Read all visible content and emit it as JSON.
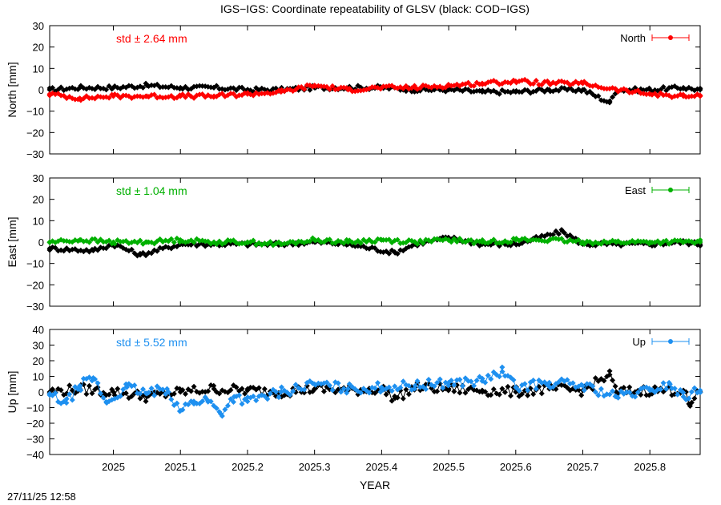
{
  "title": "IGS−IGS: Coordinate repeatability of GLSV (black: COD−IGS)",
  "xlabel": "YEAR",
  "timestamp": "27/11/25 12:58",
  "colors": {
    "reference": "#000000",
    "North": "#ff0000",
    "East": "#00b000",
    "Up": "#1e90f0"
  },
  "chart_data": [
    {
      "type": "line",
      "panel": "North",
      "ylabel": "North [mm]",
      "legend": "North",
      "legend_position": "top-right",
      "std_text": "std ± 2.64 mm",
      "xlim": [
        2024.905,
        2025.875
      ],
      "ylim": [
        -30,
        30
      ],
      "yticks": [
        -30,
        -20,
        -10,
        0,
        10,
        20,
        30
      ],
      "grid": false,
      "series": [
        {
          "name": "North",
          "color": "#ff0000",
          "x": [
            2024.905,
            2024.95,
            2025.0,
            2025.05,
            2025.1,
            2025.15,
            2025.2,
            2025.25,
            2025.3,
            2025.35,
            2025.4,
            2025.45,
            2025.5,
            2025.55,
            2025.6,
            2025.65,
            2025.7,
            2025.75,
            2025.8,
            2025.85,
            2025.875
          ],
          "y": [
            -2,
            -4,
            -3,
            -3,
            -3,
            -3,
            -2,
            -1,
            2,
            0,
            1,
            1,
            2,
            3,
            4,
            3,
            3,
            0,
            -2,
            -3,
            -3
          ]
        },
        {
          "color": "#000000",
          "x": [
            2024.905,
            2024.95,
            2025.0,
            2025.05,
            2025.1,
            2025.15,
            2025.2,
            2025.25,
            2025.3,
            2025.35,
            2025.4,
            2025.45,
            2025.5,
            2025.55,
            2025.6,
            2025.65,
            2025.7,
            2025.74,
            2025.75,
            2025.8,
            2025.85,
            2025.875
          ],
          "y": [
            0,
            1,
            1,
            2,
            1,
            1,
            0,
            0,
            1,
            1,
            1,
            0,
            0,
            -1,
            -1,
            0,
            0,
            -6,
            0,
            0,
            1,
            0
          ]
        }
      ]
    },
    {
      "type": "line",
      "panel": "East",
      "ylabel": "East [mm]",
      "legend": "East",
      "legend_position": "top-right",
      "std_text": "std ± 1.04 mm",
      "xlim": [
        2024.905,
        2025.875
      ],
      "ylim": [
        -30,
        30
      ],
      "yticks": [
        -30,
        -20,
        -10,
        0,
        10,
        20,
        30
      ],
      "grid": false,
      "series": [
        {
          "name": "East",
          "color": "#00b000",
          "x": [
            2024.905,
            2024.95,
            2025.0,
            2025.05,
            2025.1,
            2025.15,
            2025.2,
            2025.25,
            2025.3,
            2025.35,
            2025.4,
            2025.45,
            2025.5,
            2025.55,
            2025.6,
            2025.65,
            2025.7,
            2025.75,
            2025.8,
            2025.85,
            2025.875
          ],
          "y": [
            0,
            1,
            0,
            0,
            1,
            0,
            0,
            -1,
            1,
            0,
            1,
            0,
            1,
            0,
            1,
            1,
            0,
            0,
            0,
            0,
            0
          ]
        },
        {
          "color": "#000000",
          "x": [
            2024.905,
            2024.97,
            2025.0,
            2025.04,
            2025.1,
            2025.15,
            2025.2,
            2025.25,
            2025.3,
            2025.35,
            2025.42,
            2025.45,
            2025.5,
            2025.55,
            2025.6,
            2025.67,
            2025.7,
            2025.75,
            2025.8,
            2025.85,
            2025.875
          ],
          "y": [
            -3,
            -4,
            -1,
            -6,
            -1,
            -1,
            -1,
            -1,
            0,
            -1,
            -5,
            -1,
            2,
            -1,
            -1,
            5,
            -1,
            -1,
            -1,
            0,
            -1
          ]
        }
      ]
    },
    {
      "type": "line",
      "panel": "Up",
      "ylabel": "Up [mm]",
      "legend": "Up",
      "legend_position": "top-right",
      "std_text": "std ± 5.52 mm",
      "xlim": [
        2024.905,
        2025.875
      ],
      "ylim": [
        -40,
        40
      ],
      "yticks": [
        -40,
        -30,
        -20,
        -10,
        0,
        10,
        20,
        30,
        40
      ],
      "grid": false,
      "series": [
        {
          "name": "Up",
          "color": "#1e90f0",
          "x": [
            2024.905,
            2024.93,
            2024.95,
            2024.97,
            2024.99,
            2025.02,
            2025.05,
            2025.08,
            2025.1,
            2025.12,
            2025.14,
            2025.16,
            2025.18,
            2025.2,
            2025.25,
            2025.3,
            2025.35,
            2025.4,
            2025.45,
            2025.5,
            2025.55,
            2025.58,
            2025.6,
            2025.65,
            2025.7,
            2025.75,
            2025.8,
            2025.83,
            2025.85,
            2025.875
          ],
          "y": [
            -2,
            -7,
            4,
            9,
            -7,
            3,
            -1,
            2,
            -12,
            -6,
            -5,
            -14,
            -3,
            -6,
            0,
            5,
            2,
            3,
            4,
            6,
            7,
            13,
            3,
            6,
            4,
            -3,
            1,
            5,
            -3,
            1
          ]
        },
        {
          "color": "#000000",
          "x": [
            2024.905,
            2024.95,
            2025.0,
            2025.05,
            2025.1,
            2025.15,
            2025.2,
            2025.25,
            2025.3,
            2025.35,
            2025.4,
            2025.42,
            2025.45,
            2025.5,
            2025.55,
            2025.6,
            2025.65,
            2025.7,
            2025.74,
            2025.75,
            2025.8,
            2025.85,
            2025.86,
            2025.875
          ],
          "y": [
            0,
            2,
            0,
            -3,
            0,
            2,
            1,
            0,
            2,
            1,
            2,
            -4,
            3,
            2,
            1,
            0,
            2,
            1,
            11,
            0,
            1,
            1,
            -9,
            0
          ]
        }
      ]
    }
  ],
  "xaxis": {
    "ticks": [
      2025.0,
      2025.1,
      2025.2,
      2025.3,
      2025.4,
      2025.5,
      2025.6,
      2025.7,
      2025.8
    ],
    "labels": [
      "2025",
      "2025.1",
      "2025.2",
      "2025.3",
      "2025.4",
      "2025.5",
      "2025.6",
      "2025.7",
      "2025.8"
    ]
  }
}
